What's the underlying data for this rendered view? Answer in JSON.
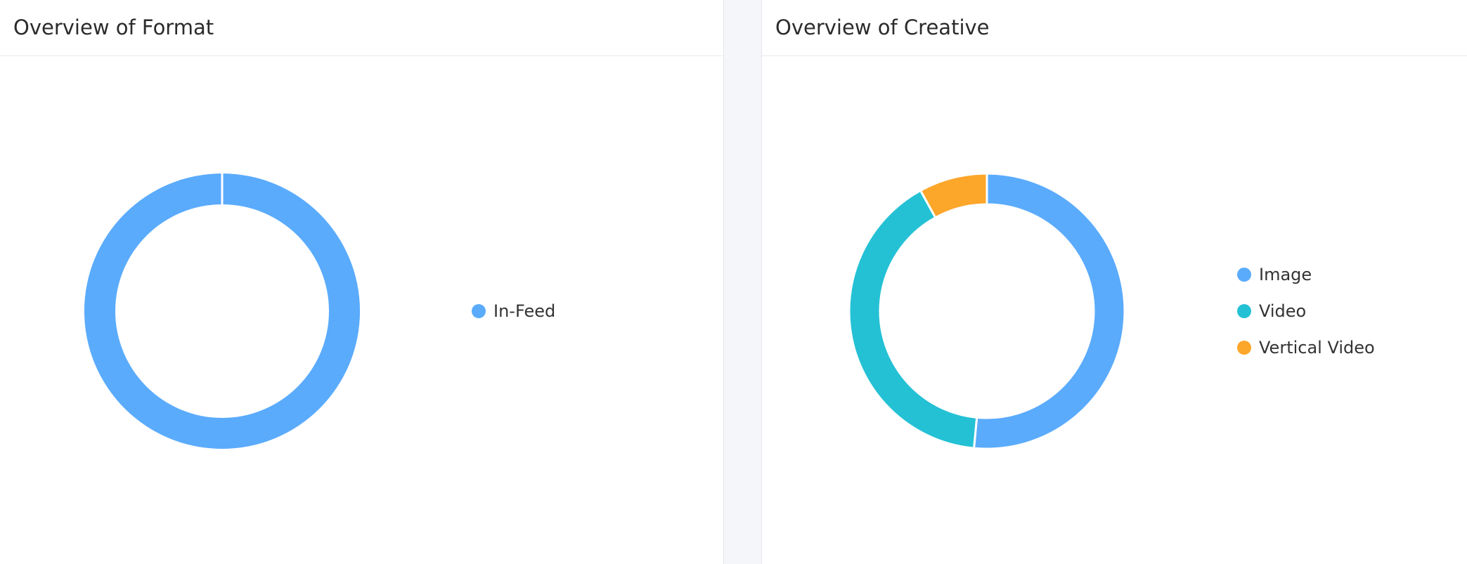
{
  "colors": {
    "image": "#5aabfc",
    "video": "#24c1d5",
    "vertical_video": "#fca62a",
    "in_feed": "#5aabfc"
  },
  "panels": [
    {
      "title": "Overview of Format"
    },
    {
      "title": "Overview of Creative"
    }
  ],
  "chart_data": [
    {
      "type": "pie",
      "donut": true,
      "title": "Overview of Format",
      "legend_position": "right",
      "slices": [
        {
          "label": "In-Feed",
          "value": 100,
          "color": "#5aabfc"
        }
      ]
    },
    {
      "type": "pie",
      "donut": true,
      "title": "Overview of Creative",
      "legend_position": "right",
      "slices": [
        {
          "label": "Image",
          "value": 51.5,
          "color": "#5aabfc"
        },
        {
          "label": "Video",
          "value": 40.5,
          "color": "#24c1d5"
        },
        {
          "label": "Vertical Video",
          "value": 8,
          "color": "#fca62a"
        }
      ]
    }
  ]
}
